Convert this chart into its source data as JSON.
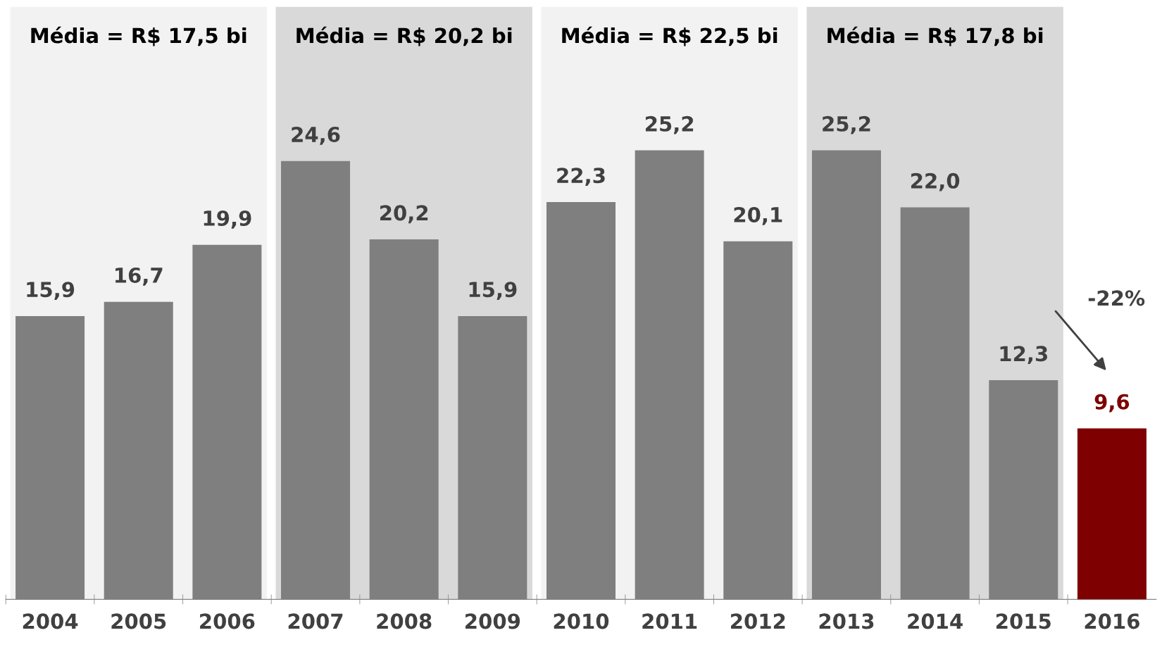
{
  "chart_data": {
    "type": "bar",
    "categories": [
      "2004",
      "2005",
      "2006",
      "2007",
      "2008",
      "2009",
      "2010",
      "2011",
      "2012",
      "2013",
      "2014",
      "2015",
      "2016"
    ],
    "values": [
      15.9,
      16.7,
      19.9,
      24.6,
      20.2,
      15.9,
      22.3,
      25.2,
      20.1,
      25.2,
      22.0,
      12.3,
      9.6
    ],
    "value_labels": [
      "15,9",
      "16,7",
      "19,9",
      "24,6",
      "20,2",
      "15,9",
      "22,3",
      "25,2",
      "20,1",
      "25,2",
      "22,0",
      "12,3",
      "9,6"
    ],
    "colors": [
      "#7f7f7f",
      "#7f7f7f",
      "#7f7f7f",
      "#7f7f7f",
      "#7f7f7f",
      "#7f7f7f",
      "#7f7f7f",
      "#7f7f7f",
      "#7f7f7f",
      "#7f7f7f",
      "#7f7f7f",
      "#7f7f7f",
      "#7f0000"
    ],
    "bands": [
      {
        "axis": "x",
        "from": "2004",
        "to": "2006",
        "label": "Média = R$ 17,5 bi",
        "color": "#f2f2f2"
      },
      {
        "axis": "x",
        "from": "2007",
        "to": "2009",
        "label": "Média = R$ 20,2 bi",
        "color": "#d9d9d9"
      },
      {
        "axis": "x",
        "from": "2010",
        "to": "2012",
        "label": "Média = R$ 22,5 bi",
        "color": "#f2f2f2"
      },
      {
        "axis": "x",
        "from": "2013",
        "to": "2015",
        "label": "Média = R$ 17,8 bi",
        "color": "#d9d9d9"
      }
    ],
    "annotations": [
      "-22%"
    ],
    "grid": false
  }
}
